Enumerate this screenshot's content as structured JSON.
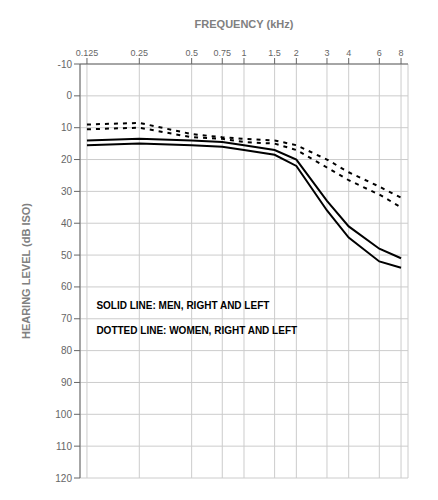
{
  "chart_data": {
    "type": "line",
    "x_label": "FREQUENCY (kHz)",
    "y_label": "HEARING LEVEL (dB ISO)",
    "log": "x",
    "grid": true,
    "x": [
      0.125,
      0.25,
      0.5,
      0.75,
      1.0,
      1.5,
      2.0,
      3.0,
      4.0,
      6.0,
      8.0
    ],
    "xlim": [
      0.114,
      8.772
    ],
    "xticks": [
      0.125,
      0.25,
      0.5,
      0.75,
      1,
      1.5,
      2,
      3,
      4,
      6,
      8
    ],
    "ylim": [
      120,
      -10
    ],
    "yticks": [
      -10,
      0,
      10,
      20,
      30,
      40,
      50,
      60,
      70,
      80,
      90,
      100,
      110,
      120
    ],
    "series": [
      {
        "color": "#000000",
        "line_style": "solid",
        "values": [
          14.0,
          13.5,
          14.0,
          14.5,
          15.5,
          17.0,
          20.0,
          33.0,
          41.0,
          48.0,
          51.0
        ]
      },
      {
        "color": "#000000",
        "line_style": "solid",
        "values": [
          15.5,
          15.0,
          15.5,
          16.0,
          17.0,
          18.5,
          22.0,
          36.0,
          44.5,
          52.0,
          54.0
        ]
      },
      {
        "color": "#000000",
        "line_style": "dotted",
        "values": [
          9.0,
          8.5,
          12.0,
          13.0,
          13.5,
          14.0,
          15.5,
          20.0,
          24.0,
          28.5,
          32.0
        ]
      },
      {
        "color": "#000000",
        "line_style": "dotted",
        "values": [
          10.5,
          10.0,
          13.0,
          13.5,
          14.5,
          15.0,
          17.0,
          22.5,
          26.5,
          31.0,
          35.0
        ]
      }
    ],
    "annotations": [
      "SOLID LINE: MEN, RIGHT AND LEFT",
      "DOTTED LINE: WOMEN, RIGHT AND LEFT"
    ]
  }
}
